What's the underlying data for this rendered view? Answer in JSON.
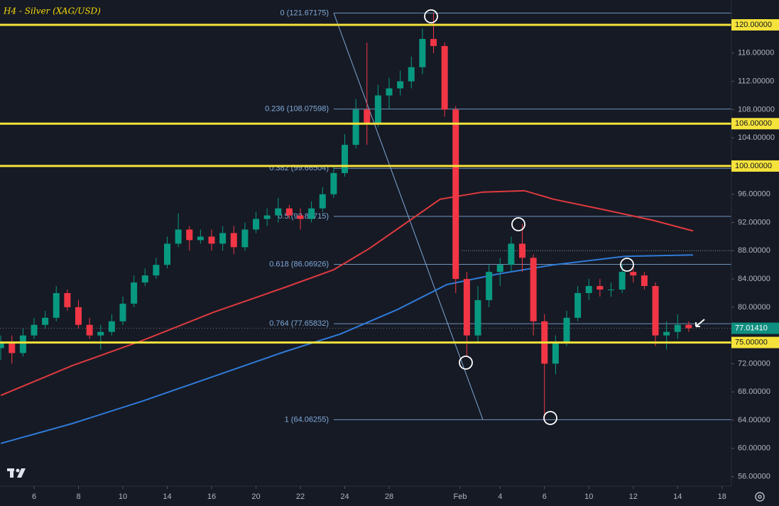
{
  "chart_data": {
    "type": "candlestick",
    "title": "H4 - Silver (XAG/USD)",
    "xlim": [
      -1.536,
      31.424
    ],
    "ylim": [
      54.65,
      123.52
    ],
    "xticks": [
      {
        "value": 0,
        "label": "6"
      },
      {
        "value": 2,
        "label": "8"
      },
      {
        "value": 4,
        "label": "10"
      },
      {
        "value": 6,
        "label": "14"
      },
      {
        "value": 8,
        "label": "16"
      },
      {
        "value": 10,
        "label": "20"
      },
      {
        "value": 12,
        "label": "22"
      },
      {
        "value": 14,
        "label": "24"
      },
      {
        "value": 16,
        "label": "28"
      },
      {
        "value": 19.2,
        "label": "Feb"
      },
      {
        "value": 21,
        "label": "4"
      },
      {
        "value": 23,
        "label": "6"
      },
      {
        "value": 25,
        "label": "10"
      },
      {
        "value": 27,
        "label": "12"
      },
      {
        "value": 29,
        "label": "14"
      },
      {
        "value": 31,
        "label": "18"
      }
    ],
    "yticks": [
      {
        "value": 116,
        "label": "116.00000"
      },
      {
        "value": 112,
        "label": "112.00000"
      },
      {
        "value": 108,
        "label": "108.00000"
      },
      {
        "value": 104,
        "label": "104.00000"
      },
      {
        "value": 96,
        "label": "96.00000"
      },
      {
        "value": 92,
        "label": "92.00000"
      },
      {
        "value": 88,
        "label": "88.00000"
      },
      {
        "value": 84,
        "label": "84.00000"
      },
      {
        "value": 80,
        "label": "80.00000"
      },
      {
        "value": 72,
        "label": "72.00000"
      },
      {
        "value": 68,
        "label": "68.00000"
      },
      {
        "value": 64,
        "label": "64.00000"
      },
      {
        "value": 60,
        "label": "60.00000"
      },
      {
        "value": 56,
        "label": "56.00000"
      }
    ],
    "candles": {
      "up_color": "#089981",
      "down_color": "#f23645",
      "x": [
        -1.5,
        -1,
        -0.5,
        0,
        0.5,
        1,
        1.5,
        2,
        2.5,
        3,
        3.5,
        4,
        4.5,
        5,
        5.5,
        6,
        6.5,
        7,
        7.5,
        8,
        8.5,
        9,
        9.5,
        10,
        10.5,
        11,
        11.5,
        12,
        12.5,
        13,
        13.5,
        14,
        14.5,
        15,
        15.5,
        16,
        16.5,
        17,
        17.5,
        18,
        18.5,
        19,
        19.5,
        20,
        20.5,
        21,
        21.5,
        22,
        22.5,
        23,
        23.5,
        24,
        24.5,
        25,
        25.5,
        26,
        26.5,
        27,
        27.5,
        28,
        28.5,
        29,
        29.5
      ],
      "open": [
        74.2,
        75,
        73.5,
        76,
        77.5,
        78.5,
        82,
        80,
        77.5,
        76,
        76.5,
        78,
        80.5,
        83.5,
        84.5,
        86,
        89,
        91,
        89.5,
        90,
        89,
        90.5,
        88.5,
        91,
        92.5,
        93,
        94,
        93,
        92.5,
        94,
        96,
        99,
        103,
        108,
        106,
        110,
        111,
        112,
        114,
        118,
        117,
        108,
        84,
        76,
        81,
        85,
        86,
        89,
        87,
        78,
        72,
        75,
        78.5,
        82,
        83,
        82.5,
        82.5,
        85,
        84.5,
        83,
        76,
        76.5,
        77.5
      ],
      "high": [
        76,
        76,
        77,
        78.5,
        79.5,
        83,
        82.5,
        81,
        78.5,
        77.5,
        79,
        81.5,
        84.5,
        85.5,
        87,
        90,
        93.3,
        91.5,
        91,
        91,
        91.5,
        91.5,
        92,
        93.5,
        94,
        95.5,
        94.5,
        94,
        95,
        97,
        100,
        104.5,
        109.5,
        117.5,
        111.5,
        112.5,
        113.5,
        115.5,
        119.5,
        121.67,
        117.5,
        108.5,
        85,
        83,
        86,
        87,
        90,
        91.8,
        87.5,
        79,
        76,
        79.5,
        83,
        84,
        84,
        83.5,
        86,
        86,
        85,
        83.5,
        78,
        79,
        78
      ],
      "low": [
        72.5,
        72,
        73,
        75.5,
        77,
        78,
        79.5,
        77,
        75.5,
        74,
        76,
        77.5,
        80,
        83,
        84,
        85.5,
        88.5,
        88,
        89,
        88,
        88,
        87.5,
        88,
        90.5,
        91.5,
        92,
        92.5,
        91,
        92,
        93.5,
        95.5,
        98.5,
        102.5,
        103,
        105.5,
        108,
        110,
        111,
        113,
        116,
        107,
        82,
        73,
        75,
        80,
        83,
        85,
        85,
        76,
        64.06,
        70.5,
        74.5,
        78,
        81,
        81.5,
        81.5,
        82,
        83.5,
        82.5,
        74.5,
        74,
        75.5,
        76.5
      ],
      "close": [
        75,
        73.5,
        76,
        77.5,
        78.5,
        82,
        80,
        77.5,
        76,
        76.5,
        78,
        80.5,
        83.5,
        84.5,
        86,
        89,
        91,
        89.5,
        90,
        89,
        90.5,
        88.5,
        91,
        92.5,
        93,
        94,
        93,
        92.5,
        94,
        96,
        99,
        103,
        108,
        106,
        110,
        111,
        112,
        114,
        118,
        117,
        108,
        84,
        76,
        81,
        85,
        86,
        89,
        87,
        78,
        72,
        75,
        78.5,
        82,
        83,
        82.5,
        82.5,
        85,
        84.5,
        83,
        76,
        76.5,
        77.5,
        77.0141
      ]
    },
    "series": [
      {
        "color": "#e03a3e",
        "x": [
          -1.5,
          1.7,
          4.9,
          8.1,
          11.3,
          13.5,
          15.1,
          16.7,
          18.3,
          20.2,
          22.1,
          23.4,
          25.7,
          27.9,
          29.7
        ],
        "values": [
          67.5,
          71.7,
          75.3,
          79.3,
          82.8,
          85.3,
          88.3,
          91.8,
          95.3,
          96.3,
          96.5,
          95.3,
          93.8,
          92.3,
          90.8
        ]
      },
      {
        "color": "#2f7bd8",
        "x": [
          -1.5,
          1.7,
          4.9,
          8.1,
          11.3,
          13.8,
          16.4,
          18.6,
          20.9,
          23.4,
          26.6,
          29.7
        ],
        "values": [
          60.7,
          63.5,
          66.7,
          70.2,
          73.7,
          76.2,
          79.7,
          83.2,
          84.7,
          86.0,
          87.2,
          87.4
        ]
      }
    ],
    "levels": {
      "color": "#f5e23a",
      "items": [
        {
          "value": 120,
          "label": "120.00000"
        },
        {
          "value": 106,
          "label": "106.00000"
        },
        {
          "value": 100,
          "label": "100.00000"
        },
        {
          "value": 75,
          "label": "75.00000"
        }
      ]
    },
    "fibonacci": {
      "color": "#7fa9d6",
      "items": [
        {
          "value": 121.67175,
          "label": "0 (121.67175)"
        },
        {
          "value": 108.07598,
          "label": "0.236 (108.07598)"
        },
        {
          "value": 99.66504,
          "label": "0.382 (99.66504)"
        },
        {
          "value": 92.86715,
          "label": "0.5 (92.86715)"
        },
        {
          "value": 86.06926,
          "label": "0.618 (86.06926)"
        },
        {
          "value": 77.65832,
          "label": "0.764 (77.65832)"
        },
        {
          "value": 64.06255,
          "label": "1 (64.06255)"
        }
      ]
    },
    "guide_line": 88,
    "last_price": {
      "value": 77.0141,
      "label": "77.01410",
      "color": "#0f8f80"
    }
  }
}
